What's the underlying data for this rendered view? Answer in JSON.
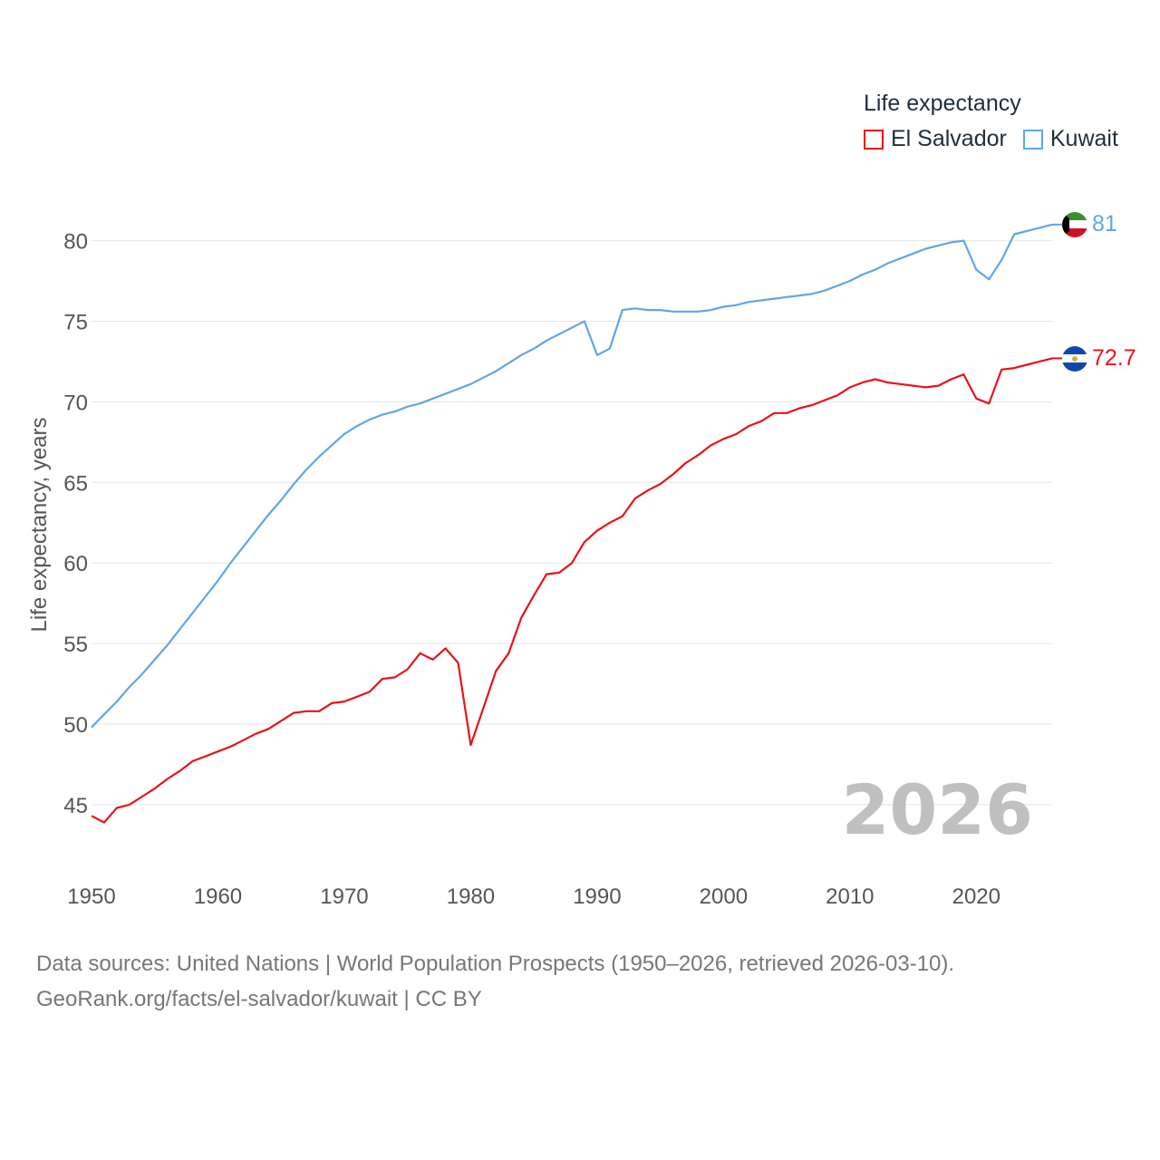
{
  "legend": {
    "title": "Life expectancy",
    "items": [
      {
        "label": "El Salvador",
        "color": "#e8121a"
      },
      {
        "label": "Kuwait",
        "color": "#62a5e7"
      }
    ]
  },
  "footer": {
    "line1": "Data sources: United Nations | World Population Prospects (1950–2026, retrieved 2026-03-10).",
    "line2": "GeoRank.org/facts/el-salvador/kuwait | CC BY"
  },
  "chart_data": {
    "type": "line",
    "title": "Life expectancy",
    "xlabel": "",
    "ylabel": "Life expectancy, years",
    "xlim": [
      1950,
      2026
    ],
    "ylim": [
      41.5,
      84
    ],
    "x_ticks": [
      1950,
      1960,
      1970,
      1980,
      1990,
      2000,
      2010,
      2020
    ],
    "y_ticks": [
      45,
      50,
      55,
      60,
      65,
      70,
      75,
      80
    ],
    "grid": true,
    "year_watermark": "2026",
    "x": [
      1950,
      1951,
      1952,
      1953,
      1954,
      1955,
      1956,
      1957,
      1958,
      1959,
      1960,
      1961,
      1962,
      1963,
      1964,
      1965,
      1966,
      1967,
      1968,
      1969,
      1970,
      1971,
      1972,
      1973,
      1974,
      1975,
      1976,
      1977,
      1978,
      1979,
      1980,
      1981,
      1982,
      1983,
      1984,
      1985,
      1986,
      1987,
      1988,
      1989,
      1990,
      1991,
      1992,
      1993,
      1994,
      1995,
      1996,
      1997,
      1998,
      1999,
      2000,
      2001,
      2002,
      2003,
      2004,
      2005,
      2006,
      2007,
      2008,
      2009,
      2010,
      2011,
      2012,
      2013,
      2014,
      2015,
      2016,
      2017,
      2018,
      2019,
      2020,
      2021,
      2022,
      2023,
      2024,
      2025,
      2026
    ],
    "series": [
      {
        "name": "El Salvador",
        "color": "#e8121a",
        "end_label": "72.7",
        "values": [
          44.3,
          43.9,
          44.8,
          45.0,
          45.5,
          46.0,
          46.6,
          47.1,
          47.7,
          48.0,
          48.3,
          48.6,
          49.0,
          49.4,
          49.7,
          50.2,
          50.7,
          50.8,
          50.8,
          51.3,
          51.4,
          51.7,
          52.0,
          52.8,
          52.9,
          53.4,
          54.4,
          54.0,
          54.7,
          53.8,
          48.7,
          51.0,
          53.3,
          54.4,
          56.6,
          58.0,
          59.3,
          59.4,
          60.0,
          61.3,
          62.0,
          62.5,
          62.9,
          64.0,
          64.5,
          64.9,
          65.5,
          66.2,
          66.7,
          67.3,
          67.7,
          68.0,
          68.5,
          68.8,
          69.3,
          69.3,
          69.6,
          69.8,
          70.1,
          70.4,
          70.9,
          71.2,
          71.4,
          71.2,
          71.1,
          71.0,
          70.9,
          71.0,
          71.4,
          71.7,
          70.2,
          69.9,
          72.0,
          72.1,
          72.3,
          72.5,
          72.7
        ]
      },
      {
        "name": "Kuwait",
        "color": "#62a5e7",
        "end_label": "81",
        "values": [
          49.8,
          50.6,
          51.4,
          52.3,
          53.1,
          54.0,
          54.9,
          55.9,
          56.9,
          57.9,
          58.9,
          60.0,
          61.0,
          62.0,
          63.0,
          63.9,
          64.9,
          65.8,
          66.6,
          67.3,
          68.0,
          68.5,
          68.9,
          69.2,
          69.4,
          69.7,
          69.9,
          70.2,
          70.5,
          70.8,
          71.1,
          71.5,
          71.9,
          72.4,
          72.9,
          73.3,
          73.8,
          74.2,
          74.6,
          75.0,
          72.9,
          73.3,
          75.7,
          75.8,
          75.7,
          75.7,
          75.6,
          75.6,
          75.6,
          75.7,
          75.9,
          76.0,
          76.2,
          76.3,
          76.4,
          76.5,
          76.6,
          76.7,
          76.9,
          77.2,
          77.5,
          77.9,
          78.2,
          78.6,
          78.9,
          79.2,
          79.5,
          79.7,
          79.9,
          80.0,
          78.2,
          77.6,
          78.8,
          80.4,
          80.6,
          80.8,
          81.0
        ]
      }
    ]
  }
}
